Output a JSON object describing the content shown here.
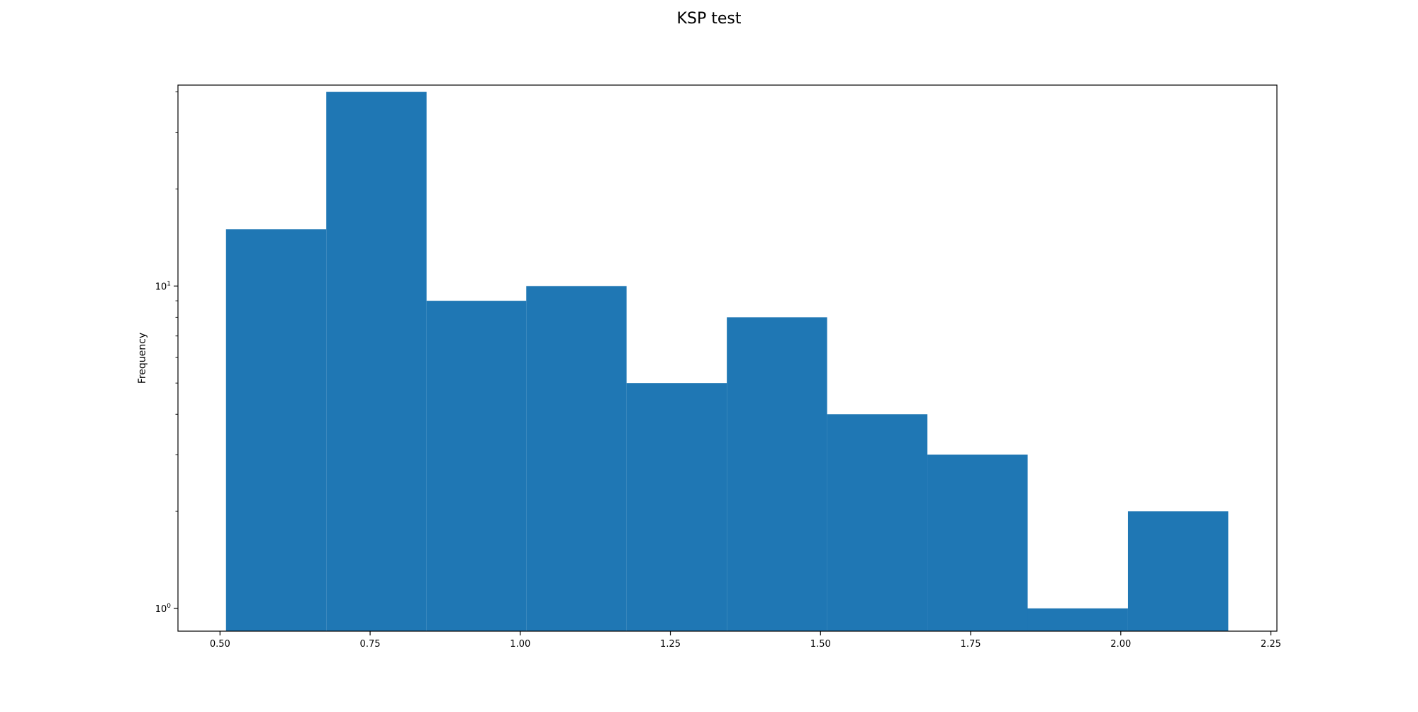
{
  "chart_data": {
    "type": "bar",
    "subtype": "histogram",
    "title": "KSP test",
    "xlabel": "",
    "ylabel": "Frequency",
    "y_scale": "log",
    "xlim": [
      0.43,
      2.26
    ],
    "ylim": [
      0.85,
      42
    ],
    "grid": false,
    "bar_color": "#1f77b4",
    "bins": [
      {
        "x0": 0.51,
        "x1": 0.677,
        "count": 15
      },
      {
        "x0": 0.677,
        "x1": 0.844,
        "count": 40
      },
      {
        "x0": 0.844,
        "x1": 1.01,
        "count": 9
      },
      {
        "x0": 1.01,
        "x1": 1.177,
        "count": 10
      },
      {
        "x0": 1.177,
        "x1": 1.344,
        "count": 5
      },
      {
        "x0": 1.344,
        "x1": 1.511,
        "count": 8
      },
      {
        "x0": 1.511,
        "x1": 1.678,
        "count": 4
      },
      {
        "x0": 1.678,
        "x1": 1.845,
        "count": 3
      },
      {
        "x0": 1.845,
        "x1": 2.012,
        "count": 1
      },
      {
        "x0": 2.012,
        "x1": 2.179,
        "count": 2
      }
    ],
    "x_ticks": [
      {
        "value": 0.5,
        "label": "0.50"
      },
      {
        "value": 0.75,
        "label": "0.75"
      },
      {
        "value": 1.0,
        "label": "1.00"
      },
      {
        "value": 1.25,
        "label": "1.25"
      },
      {
        "value": 1.5,
        "label": "1.50"
      },
      {
        "value": 1.75,
        "label": "1.75"
      },
      {
        "value": 2.0,
        "label": "2.00"
      },
      {
        "value": 2.25,
        "label": "2.25"
      }
    ],
    "y_major_ticks": [
      {
        "value": 1,
        "base": "10",
        "exp": "0"
      },
      {
        "value": 10,
        "base": "10",
        "exp": "1"
      }
    ],
    "y_minor_ticks": [
      2,
      3,
      4,
      5,
      6,
      7,
      8,
      9,
      20,
      30,
      40
    ]
  }
}
